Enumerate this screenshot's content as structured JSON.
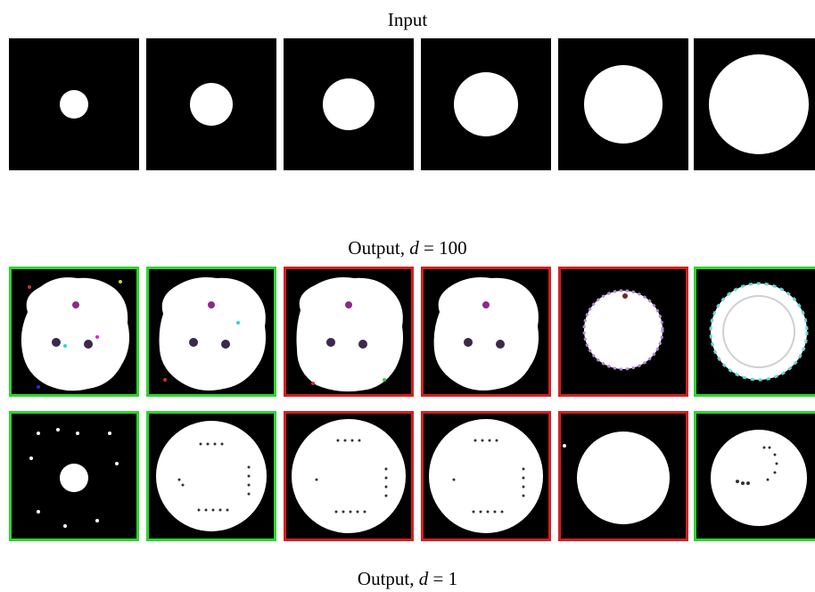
{
  "captions": {
    "input": "Input",
    "output_top_prefix": "Output, ",
    "output_top_var": "d",
    "output_top_rest": " = 100",
    "output_bottom_prefix": "Output, ",
    "output_bottom_var": "d",
    "output_bottom_rest": " = 1"
  },
  "colors": {
    "green": "#2bd62b",
    "red": "#d41f1f",
    "background": "#000000",
    "foreground": "#ffffff"
  },
  "input_row": [
    {
      "label": "input-1"
    },
    {
      "label": "input-2"
    },
    {
      "label": "input-3"
    },
    {
      "label": "input-4"
    },
    {
      "label": "input-5"
    },
    {
      "label": "input-6"
    }
  ],
  "input_radius_fraction": [
    0.11,
    0.165,
    0.2,
    0.25,
    0.3,
    0.38
  ],
  "output_d100_border": [
    "green",
    "green",
    "red",
    "red",
    "red",
    "green"
  ],
  "output_d1_border": [
    "green",
    "green",
    "red",
    "red",
    "red",
    "green"
  ]
}
